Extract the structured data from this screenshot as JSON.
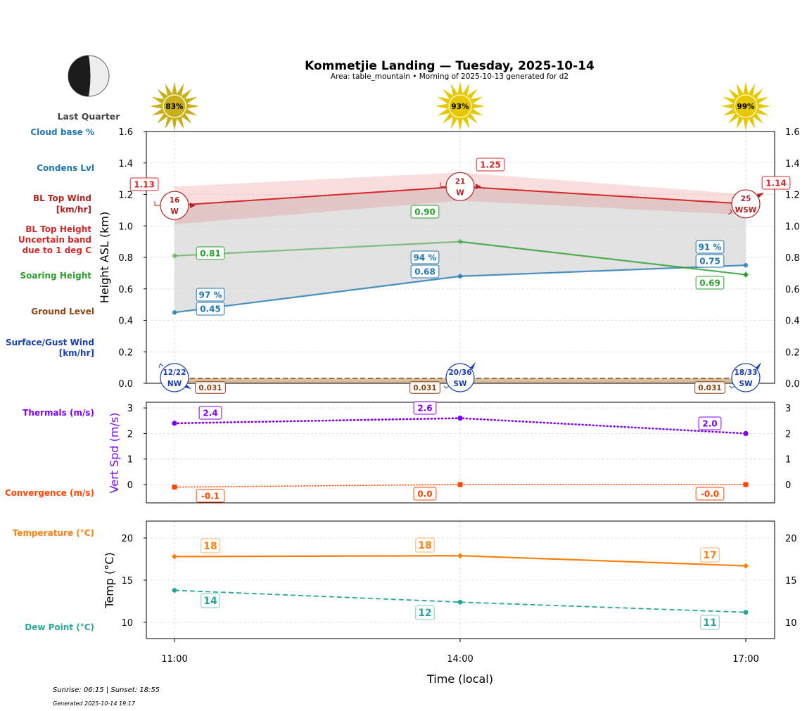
{
  "header": {
    "title": "Kommetjie Landing — Tuesday, 2025-10-14",
    "subtitle": "Area: table_mountain • Morning of 2025-10-13 generated for d2"
  },
  "moon": {
    "phase_label": "Last Quarter",
    "icon": "moon-last-quarter-icon"
  },
  "sun_icons": [
    {
      "time": "11:00",
      "label": "83%",
      "icon": "sun-icon",
      "color": "#c8b01c"
    },
    {
      "time": "14:00",
      "label": "93%",
      "icon": "sun-icon",
      "color": "#e6c800"
    },
    {
      "time": "17:00",
      "label": "99%",
      "icon": "sun-icon",
      "color": "#e6c800"
    }
  ],
  "side_labels": {
    "cloud_base": "Cloud base %",
    "condens_lvl": "Condens Lvl",
    "bl_top_wind_1": "BL Top Wind",
    "bl_top_wind_2": "[km/hr]",
    "bl_top_height_1": "BL Top Height",
    "bl_top_height_2": "Uncertain band",
    "bl_top_height_3": "due to 1 deg C",
    "soaring_height": "Soaring Height",
    "ground_level": "Ground Level",
    "surface_wind_1": "Surface/Gust Wind",
    "surface_wind_2": "[km/hr]",
    "thermals": "Thermals (m/s)",
    "convergence": "Convergence (m/s)",
    "temperature": "Temperature (°C)",
    "dew_point": "Dew Point (°C)"
  },
  "colors": {
    "cloud": "#1f77b4",
    "bl_wind": "#b22222",
    "bl_top": "#d62728",
    "soaring": "#2ca02c",
    "ground": "#8b4513",
    "surface_wind": "#1a3fb5",
    "thermals": "#7f00ff",
    "convergence": "#ff4500",
    "temperature": "#ff7f0e",
    "dew_point": "#26a69a"
  },
  "footer": {
    "sun_times": "Sunrise: 06:15 | Sunset: 18:55",
    "generated": "Generated 2025-10-14 19:17"
  },
  "chart_data": [
    {
      "type": "line",
      "name": "height-panel",
      "x": [
        "11:00",
        "14:00",
        "17:00"
      ],
      "ylabel": "Height ASL (km)",
      "ylim": [
        0.0,
        1.6
      ],
      "yticks": [
        "0.0",
        "0.2",
        "0.4",
        "0.6",
        "0.8",
        "1.0",
        "1.2",
        "1.4",
        "1.6"
      ],
      "grid": true,
      "series": [
        {
          "name": "BL Top Height",
          "values": [
            1.13,
            1.25,
            1.14
          ],
          "labels": [
            "1.13",
            "1.25",
            "1.14"
          ]
        },
        {
          "name": "BL Top Uncertain band",
          "upper": [
            1.25,
            1.34,
            1.2
          ],
          "lower": [
            1.01,
            1.16,
            1.07
          ]
        },
        {
          "name": "Soaring Height",
          "values": [
            0.81,
            0.9,
            0.69
          ],
          "labels": [
            "0.81",
            "0.90",
            "0.69"
          ]
        },
        {
          "name": "Condens Lvl",
          "values": [
            0.45,
            0.68,
            0.75
          ],
          "labels": [
            "0.45",
            "0.68",
            "0.75"
          ]
        },
        {
          "name": "Cloud base %",
          "values": [
            97,
            94,
            91
          ],
          "labels": [
            "97 %",
            "94 %",
            "91 %"
          ]
        },
        {
          "name": "Ground Level",
          "values": [
            0.031,
            0.031,
            0.031
          ],
          "labels": [
            "0.031",
            "0.031",
            "0.031"
          ]
        }
      ],
      "bl_top_wind": [
        {
          "speed": "16",
          "dir": "W"
        },
        {
          "speed": "21",
          "dir": "W"
        },
        {
          "speed": "25",
          "dir": "WSW"
        }
      ],
      "surface_wind": [
        {
          "speed": "12/22",
          "dir": "NW"
        },
        {
          "speed": "20/36",
          "dir": "SW"
        },
        {
          "speed": "18/33",
          "dir": "SW"
        }
      ]
    },
    {
      "type": "line",
      "name": "vertical-speed-panel",
      "x": [
        "11:00",
        "14:00",
        "17:00"
      ],
      "ylabel": "Vert Spd (m/s)",
      "ylim": [
        -0.7,
        3.2
      ],
      "yticks": [
        "0",
        "1",
        "2",
        "3"
      ],
      "grid": true,
      "series": [
        {
          "name": "Thermals (m/s)",
          "values": [
            2.4,
            2.6,
            2.0
          ],
          "labels": [
            "2.4",
            "2.6",
            "2.0"
          ]
        },
        {
          "name": "Convergence (m/s)",
          "values": [
            -0.1,
            0.0,
            0.0
          ],
          "labels": [
            "-0.1",
            "0.0",
            "-0.0"
          ]
        }
      ]
    },
    {
      "type": "line",
      "name": "temperature-panel",
      "x": [
        "11:00",
        "14:00",
        "17:00"
      ],
      "xlabel": "Time (local)",
      "ylabel": "Temp (°C)",
      "ylim": [
        8,
        22
      ],
      "yticks": [
        "10",
        "15",
        "20"
      ],
      "grid": true,
      "series": [
        {
          "name": "Temperature (°C)",
          "values": [
            17.8,
            17.9,
            16.7
          ],
          "labels": [
            "18",
            "18",
            "17"
          ]
        },
        {
          "name": "Dew Point (°C)",
          "values": [
            13.8,
            12.4,
            11.2
          ],
          "labels": [
            "14",
            "12",
            "11"
          ]
        }
      ]
    }
  ]
}
